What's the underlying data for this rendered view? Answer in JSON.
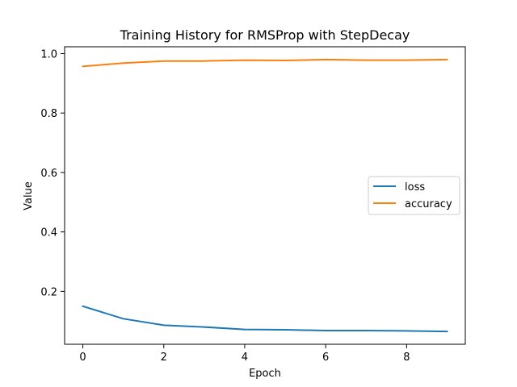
{
  "chart_data": {
    "type": "line",
    "title": "Training History for RMSProp with StepDecay",
    "xlabel": "Epoch",
    "ylabel": "Value",
    "x": [
      0,
      1,
      2,
      3,
      4,
      5,
      6,
      7,
      8,
      9
    ],
    "xlim": [
      -0.45,
      9.45
    ],
    "ylim": [
      0.022,
      1.023
    ],
    "xticks": [
      0,
      2,
      4,
      6,
      8
    ],
    "yticks": [
      0.2,
      0.4,
      0.6,
      0.8,
      1.0
    ],
    "xtick_labels": [
      "0",
      "2",
      "4",
      "6",
      "8"
    ],
    "ytick_labels": [
      "0.2",
      "0.4",
      "0.6",
      "0.8",
      "1.0"
    ],
    "grid": false,
    "legend_position": "center-right",
    "series": [
      {
        "name": "loss",
        "color": "#1f77b4",
        "values": [
          0.15,
          0.108,
          0.086,
          0.08,
          0.072,
          0.071,
          0.068,
          0.068,
          0.067,
          0.065
        ]
      },
      {
        "name": "accuracy",
        "color": "#ff7f0e",
        "values": [
          0.957,
          0.968,
          0.975,
          0.975,
          0.978,
          0.977,
          0.98,
          0.978,
          0.978,
          0.98
        ]
      }
    ]
  }
}
